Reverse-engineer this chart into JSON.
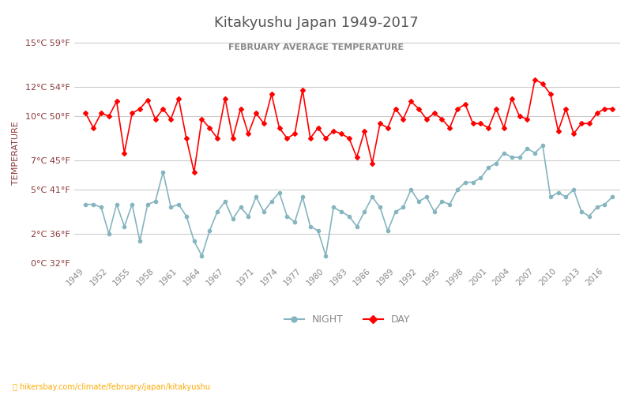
{
  "title": "Kitakyushu Japan 1949-2017",
  "subtitle": "FEBRUARY AVERAGE TEMPERATURE",
  "ylabel": "TEMPERATURE",
  "watermark": "hikersbay.com/climate/february/japan/kitakyushu",
  "years": [
    1949,
    1950,
    1951,
    1952,
    1953,
    1954,
    1955,
    1956,
    1957,
    1958,
    1959,
    1960,
    1961,
    1962,
    1963,
    1964,
    1965,
    1966,
    1967,
    1968,
    1969,
    1970,
    1971,
    1972,
    1973,
    1974,
    1975,
    1976,
    1977,
    1978,
    1979,
    1980,
    1981,
    1982,
    1983,
    1984,
    1985,
    1986,
    1987,
    1988,
    1989,
    1990,
    1991,
    1992,
    1993,
    1994,
    1995,
    1996,
    1997,
    1998,
    1999,
    2000,
    2001,
    2002,
    2003,
    2004,
    2005,
    2006,
    2007,
    2008,
    2009,
    2010,
    2011,
    2012,
    2013,
    2014,
    2015,
    2016,
    2017
  ],
  "day_temps": [
    10.2,
    9.2,
    10.2,
    10.0,
    11.0,
    7.5,
    10.2,
    10.5,
    11.1,
    9.8,
    10.5,
    9.8,
    11.2,
    8.5,
    6.2,
    9.8,
    9.2,
    8.5,
    11.2,
    8.5,
    10.5,
    8.8,
    10.2,
    9.5,
    11.5,
    9.2,
    8.5,
    8.8,
    11.8,
    8.5,
    9.2,
    8.5,
    9.0,
    8.8,
    8.5,
    7.2,
    9.0,
    6.8,
    9.5,
    9.2,
    10.5,
    9.8,
    11.0,
    10.5,
    9.8,
    10.2,
    9.8,
    9.2,
    10.5,
    10.8,
    9.5,
    9.5,
    9.2,
    10.5,
    9.2,
    11.2,
    10.0,
    9.8,
    12.5,
    12.2,
    11.5,
    9.0,
    10.5,
    8.8,
    9.5,
    9.5,
    10.2,
    10.5,
    10.5
  ],
  "night_temps": [
    4.0,
    4.0,
    3.8,
    2.0,
    4.0,
    2.5,
    4.0,
    1.5,
    4.0,
    4.2,
    6.2,
    3.8,
    4.0,
    3.2,
    1.5,
    0.5,
    2.2,
    3.5,
    4.2,
    3.0,
    3.8,
    3.2,
    4.5,
    3.5,
    4.2,
    4.8,
    3.2,
    2.8,
    4.5,
    2.5,
    2.2,
    0.5,
    3.8,
    3.5,
    3.2,
    2.5,
    3.5,
    4.5,
    3.8,
    2.2,
    3.5,
    3.8,
    5.0,
    4.2,
    4.5,
    3.5,
    4.2,
    4.0,
    5.0,
    5.5,
    5.5,
    5.8,
    6.5,
    6.8,
    7.5,
    7.2,
    7.2,
    7.8,
    7.5,
    8.0,
    4.5,
    4.8,
    4.5,
    5.0,
    3.5,
    3.2,
    3.8,
    4.0,
    4.5
  ],
  "day_color": "#ff0000",
  "night_color": "#85b5bf",
  "bg_color": "#ffffff",
  "grid_color": "#cccccc",
  "title_color": "#555555",
  "subtitle_color": "#888888",
  "label_color": "#8b3a3a",
  "tick_color": "#888888",
  "ylim_min": 0,
  "ylim_max": 15,
  "yticks_c": [
    0,
    2,
    5,
    7,
    10,
    12,
    15
  ],
  "yticks_f": [
    32,
    36,
    41,
    45,
    50,
    54,
    59
  ],
  "xtick_years": [
    1949,
    1952,
    1955,
    1958,
    1961,
    1964,
    1967,
    1971,
    1974,
    1977,
    1980,
    1983,
    1986,
    1989,
    1992,
    1995,
    1998,
    2001,
    2004,
    2007,
    2010,
    2013,
    2016
  ]
}
